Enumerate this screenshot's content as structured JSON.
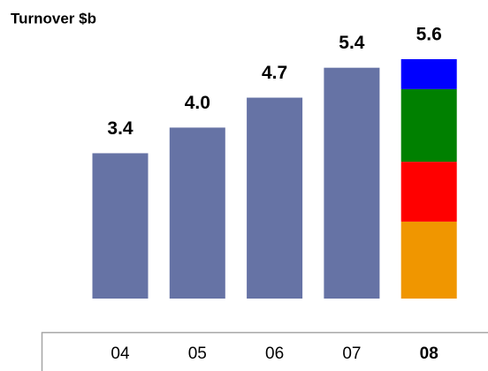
{
  "chart_data": {
    "type": "stacked_bar",
    "title": "Turnover $b",
    "categories": [
      "04",
      "05",
      "06",
      "07",
      "08"
    ],
    "series": [
      {
        "color": "#6673a5",
        "values": [
          3.4,
          4.0,
          4.7,
          5.4,
          null
        ]
      },
      {
        "color": "#f09600",
        "values": [
          null,
          null,
          null,
          null,
          1.8
        ]
      },
      {
        "color": "#ff0000",
        "values": [
          null,
          null,
          null,
          null,
          1.4
        ]
      },
      {
        "color": "#008000",
        "values": [
          null,
          null,
          null,
          null,
          1.7
        ]
      },
      {
        "color": "#0000ff",
        "values": [
          null,
          null,
          null,
          null,
          0.7
        ]
      }
    ],
    "totals": [
      3.4,
      4.0,
      4.7,
      5.4,
      5.6
    ],
    "total_labels": [
      "3.4",
      "4.0",
      "4.7",
      "5.4",
      "5.6"
    ]
  }
}
